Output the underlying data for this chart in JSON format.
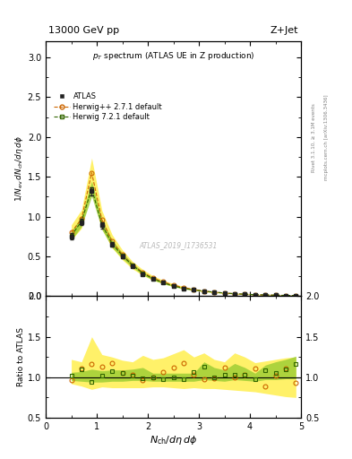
{
  "title_top": "13000 GeV pp",
  "title_right": "Z+Jet",
  "plot_title": "p_{T} spectrum (ATLAS UE in Z production)",
  "xlabel": "N_{ch}/dη dφ",
  "ylabel_main": "1/N_{ev} dN_{ch}/dη dφ",
  "ylabel_ratio": "Ratio to ATLAS",
  "right_label": "Rivet 3.1.10, ≥ 3.1M events",
  "right_label2": "mcplots.cern.ch [arXiv:1306.3436]",
  "watermark": "ATLAS_2019_I1736531",
  "xlim": [
    0,
    5
  ],
  "ylim_main": [
    0,
    3.2
  ],
  "ylim_ratio": [
    0.5,
    2.0
  ],
  "atlas_x": [
    0.5,
    0.7,
    0.9,
    1.1,
    1.3,
    1.5,
    1.7,
    1.9,
    2.1,
    2.3,
    2.5,
    2.7,
    2.9,
    3.1,
    3.3,
    3.5,
    3.7,
    3.9,
    4.1,
    4.3,
    4.5,
    4.7,
    4.9
  ],
  "atlas_y": [
    0.75,
    0.93,
    1.32,
    0.89,
    0.65,
    0.5,
    0.38,
    0.28,
    0.22,
    0.17,
    0.13,
    0.1,
    0.08,
    0.06,
    0.05,
    0.04,
    0.03,
    0.025,
    0.02,
    0.016,
    0.013,
    0.01,
    0.008
  ],
  "atlas_yerr": [
    0.04,
    0.04,
    0.05,
    0.04,
    0.03,
    0.02,
    0.015,
    0.012,
    0.01,
    0.008,
    0.007,
    0.006,
    0.005,
    0.004,
    0.003,
    0.003,
    0.002,
    0.002,
    0.002,
    0.0015,
    0.0012,
    0.001,
    0.001
  ],
  "hpp_x": [
    0.5,
    0.7,
    0.9,
    1.1,
    1.3,
    1.5,
    1.7,
    1.9,
    2.1,
    2.3,
    2.5,
    2.7,
    2.9,
    3.1,
    3.3,
    3.5,
    3.7,
    3.9,
    4.1,
    4.3,
    4.5,
    4.7,
    4.9
  ],
  "hpp_y": [
    0.8,
    0.97,
    1.55,
    0.96,
    0.69,
    0.52,
    0.39,
    0.3,
    0.23,
    0.18,
    0.14,
    0.11,
    0.085,
    0.065,
    0.052,
    0.041,
    0.032,
    0.026,
    0.02,
    0.016,
    0.013,
    0.01,
    0.008
  ],
  "hpp_ratio_y": [
    1.07,
    1.04,
    1.18,
    1.08,
    1.06,
    1.04,
    1.03,
    1.07,
    1.05,
    1.06,
    1.08,
    1.1,
    1.06,
    1.08,
    1.04,
    1.02,
    1.07,
    1.04,
    1.0,
    1.0,
    1.0,
    1.0,
    1.0
  ],
  "hpp_ratio_lo": [
    0.92,
    0.89,
    0.85,
    0.88,
    0.87,
    0.87,
    0.87,
    0.87,
    0.88,
    0.88,
    0.87,
    0.86,
    0.87,
    0.86,
    0.86,
    0.85,
    0.84,
    0.83,
    0.82,
    0.8,
    0.78,
    0.76,
    0.75
  ],
  "hpp_ratio_hi": [
    1.22,
    1.19,
    1.5,
    1.28,
    1.25,
    1.21,
    1.19,
    1.27,
    1.22,
    1.24,
    1.29,
    1.34,
    1.25,
    1.3,
    1.22,
    1.19,
    1.3,
    1.25,
    1.18,
    1.2,
    1.22,
    1.24,
    1.25
  ],
  "hw7_x": [
    0.5,
    0.7,
    0.9,
    1.1,
    1.3,
    1.5,
    1.7,
    1.9,
    2.1,
    2.3,
    2.5,
    2.7,
    2.9,
    3.1,
    3.3,
    3.5,
    3.7,
    3.9,
    4.1,
    4.3,
    4.5,
    4.7,
    4.9
  ],
  "hw7_y": [
    0.76,
    0.94,
    1.35,
    0.9,
    0.66,
    0.51,
    0.39,
    0.29,
    0.22,
    0.17,
    0.13,
    0.1,
    0.08,
    0.065,
    0.052,
    0.041,
    0.032,
    0.026,
    0.02,
    0.017,
    0.014,
    0.011,
    0.009
  ],
  "hw7_ratio_y": [
    1.01,
    1.01,
    1.02,
    1.01,
    1.02,
    1.02,
    1.03,
    1.04,
    1.0,
    1.0,
    1.0,
    1.0,
    1.0,
    1.08,
    1.04,
    1.02,
    1.07,
    1.04,
    1.0,
    1.06,
    1.08,
    1.1,
    1.12
  ],
  "hw7_ratio_lo": [
    0.96,
    0.95,
    0.94,
    0.94,
    0.95,
    0.95,
    0.96,
    0.96,
    0.95,
    0.95,
    0.95,
    0.95,
    0.95,
    0.97,
    0.96,
    0.95,
    0.97,
    0.96,
    0.95,
    0.97,
    0.97,
    0.98,
    0.98
  ],
  "hw7_ratio_hi": [
    1.06,
    1.07,
    1.1,
    1.08,
    1.09,
    1.09,
    1.1,
    1.12,
    1.05,
    1.05,
    1.05,
    1.05,
    1.05,
    1.19,
    1.12,
    1.09,
    1.17,
    1.12,
    1.05,
    1.15,
    1.19,
    1.22,
    1.26
  ],
  "atlas_color": "#222222",
  "hpp_color": "#cc6600",
  "hw7_color": "#336600",
  "hpp_band_color": "#ffee44",
  "hw7_band_color": "#99cc33",
  "background_color": "#ffffff"
}
